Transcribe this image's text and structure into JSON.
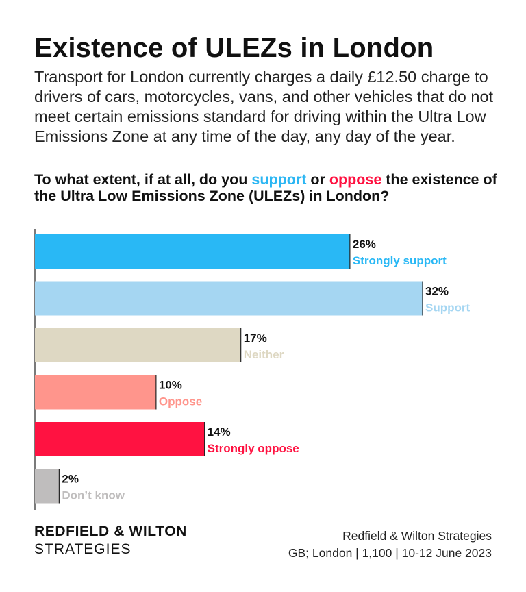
{
  "title": "Existence of ULEZs in London",
  "subtitle": "Transport for London currently charges a daily £12.50 charge to drivers of cars, motorcycles, vans, and other vehicles that do not meet certain emissions standard for driving within the Ultra Low Emissions Zone at any time of the day, any day of the year.",
  "question": {
    "prefix": "To what extent, if at all, do you ",
    "support_word": "support",
    "middle": " or ",
    "oppose_word": "oppose",
    "suffix": " the existence of the Ultra Low Emissions Zone (ULEZs) in London?"
  },
  "colors": {
    "support_keyword": "#2bb6f3",
    "oppose_keyword": "#ff1241"
  },
  "chart_data": {
    "type": "bar",
    "orientation": "horizontal",
    "categories": [
      "Strongly support",
      "Support",
      "Neither",
      "Oppose",
      "Strongly oppose",
      "Don't know"
    ],
    "values": [
      26,
      32,
      17,
      10,
      14,
      2
    ],
    "value_labels": [
      "26%",
      "32%",
      "17%",
      "10%",
      "14%",
      "2%"
    ],
    "category_labels": [
      "Strongly support",
      "Support",
      "Neither",
      "Oppose",
      "Strongly oppose",
      "Don’t know"
    ],
    "colors": [
      "#29b8f5",
      "#a5d6f2",
      "#ded8c3",
      "#ff958c",
      "#ff1241",
      "#bfbdbd"
    ],
    "label_colors": [
      "#29b8f5",
      "#a5d6f2",
      "#ded8c3",
      "#ff958c",
      "#ff1241",
      "#bfbdbd"
    ],
    "xlim": [
      0,
      32
    ],
    "grid": false,
    "legend": "none"
  },
  "footer": {
    "brand_line1": "REDFIELD & WILTON",
    "brand_line2": "STRATEGIES",
    "source_line1": "Redfield & Wilton Strategies",
    "source_line2": "GB; London | 1,100 | 10-12 June 2023"
  }
}
